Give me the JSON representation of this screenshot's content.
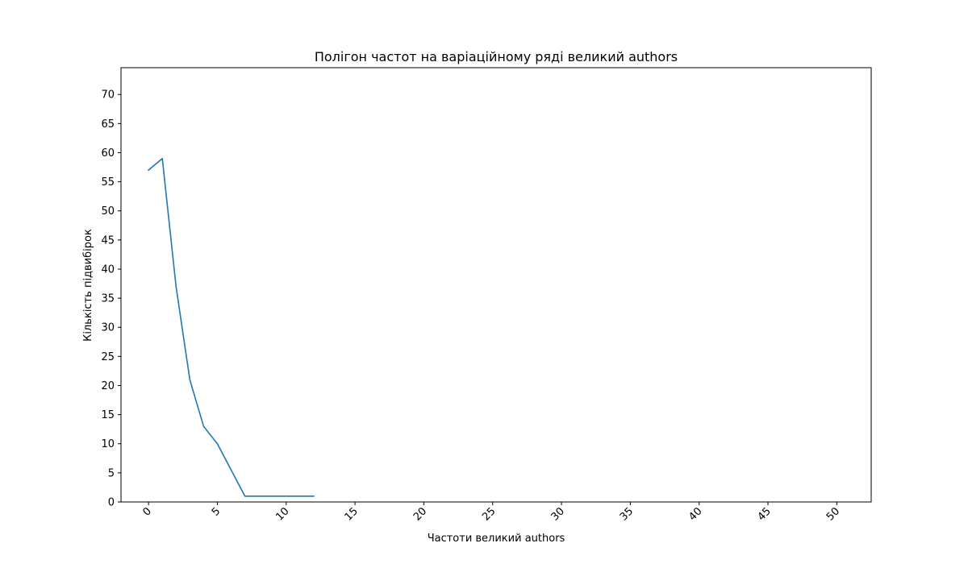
{
  "chart_data": {
    "type": "line",
    "title": "Полігон частот на варіаційному ряді великий authors",
    "xlabel": "Частоти великий authors",
    "ylabel": "Кількість підвибірок",
    "xlim": [
      -2,
      52.5
    ],
    "ylim": [
      0,
      74.6
    ],
    "xticks": [
      0,
      5,
      10,
      15,
      20,
      25,
      30,
      35,
      40,
      45,
      50
    ],
    "yticks": [
      0,
      5,
      10,
      15,
      20,
      25,
      30,
      35,
      40,
      45,
      50,
      55,
      60,
      65,
      70
    ],
    "xtick_rotation": 45,
    "grid": false,
    "series": [
      {
        "x": [
          0,
          1,
          2,
          3,
          4,
          5,
          6,
          7,
          8,
          9,
          10,
          11,
          12
        ],
        "values": [
          57,
          59,
          37,
          21,
          13,
          10,
          5.5,
          1,
          1,
          1,
          1,
          1,
          1
        ],
        "color": "#1f77b4"
      }
    ]
  }
}
